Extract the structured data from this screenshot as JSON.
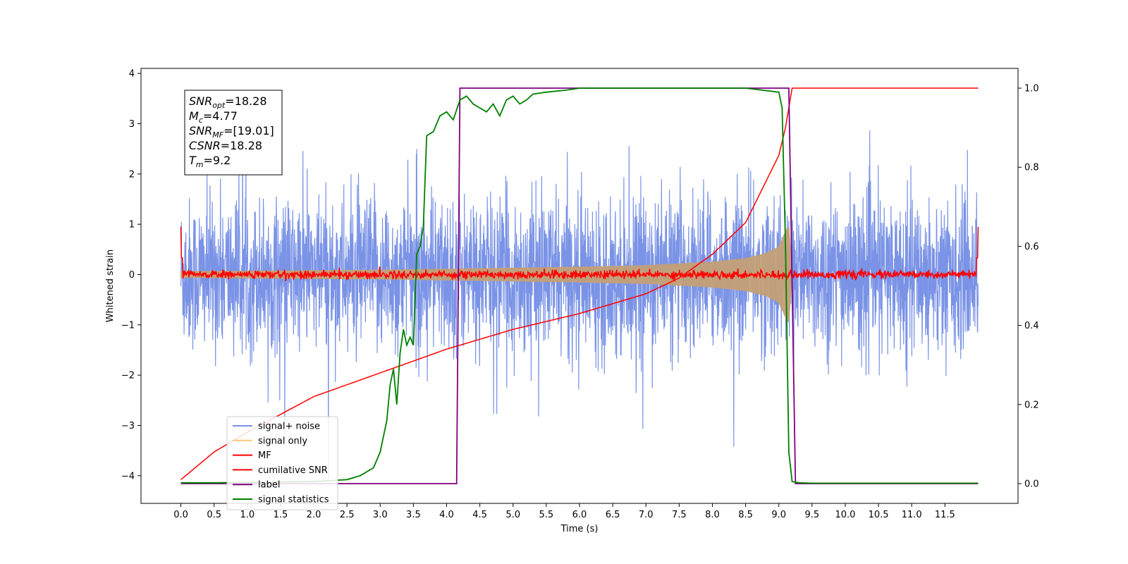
{
  "chart_data": {
    "type": "line",
    "xlabel": "Time (s)",
    "ylabel": "Whitened strain",
    "xlim": [
      -0.6,
      12.6
    ],
    "ylim": [
      -4.55,
      4.1
    ],
    "ylim_right": [
      -0.05,
      1.05
    ],
    "xticks": [
      "0.0",
      "0.5",
      "1.0",
      "1.5",
      "2.0",
      "2.5",
      "3.0",
      "3.5",
      "4.0",
      "4.5",
      "5.0",
      "5.5",
      "6.0",
      "6.5",
      "7.0",
      "7.5",
      "8.0",
      "8.5",
      "9.0",
      "9.5",
      "10.0",
      "10.5",
      "11.0",
      "11.5"
    ],
    "yticks": [
      "4",
      "3",
      "2",
      "1",
      "0",
      "−1",
      "−2",
      "−3",
      "−4"
    ],
    "yticks_right": [
      "1.0",
      "0.8",
      "0.6",
      "0.4",
      "0.2",
      "0.0"
    ],
    "annotation": [
      {
        "base": "SNR",
        "sub": "opt",
        "value": "=18.28"
      },
      {
        "base": "M",
        "sub": "c",
        "value": "=4.77"
      },
      {
        "base": "SNR",
        "sub": "MF",
        "value": "=[19.01]"
      },
      {
        "base": "CSNR",
        "sub": "",
        "value": "=18.28"
      },
      {
        "base": "T",
        "sub": "m",
        "value": "=9.2"
      }
    ],
    "legend": [
      {
        "label": "signal+ noise",
        "color": "#7a93e6"
      },
      {
        "label": "signal only",
        "color": "#ffc774"
      },
      {
        "label": "MF",
        "color": "#ff0000"
      },
      {
        "label": "cumilative SNR",
        "color": "#ff0000"
      },
      {
        "label": "label",
        "color": "#800080"
      },
      {
        "label": "signal statistics",
        "color": "#008000"
      }
    ],
    "legend_position": "lower-left",
    "series": [
      {
        "name": "signal+ noise",
        "axis": "left",
        "color": "#7a93e6",
        "x_range": [
          0.0,
          12.0
        ],
        "envelope_upper": 2.3,
        "envelope_lower": -2.3,
        "min_value": -4.15,
        "max_value": 3.7
      },
      {
        "name": "signal only",
        "axis": "left",
        "color": "#c4a077",
        "x": [
          0.0,
          1.0,
          2.0,
          3.0,
          4.0,
          5.0,
          6.0,
          7.0,
          8.0,
          8.5,
          8.8,
          9.0,
          9.1,
          9.15,
          9.2
        ],
        "amplitude": [
          0.06,
          0.07,
          0.08,
          0.09,
          0.11,
          0.13,
          0.15,
          0.18,
          0.25,
          0.32,
          0.42,
          0.55,
          0.85,
          1.0,
          0.0
        ]
      },
      {
        "name": "MF",
        "axis": "left",
        "color": "#ff0000",
        "x_range": [
          0.0,
          12.0
        ],
        "level": 0.0,
        "noise_amplitude": 0.06,
        "edge_value": 0.95
      },
      {
        "name": "cumilative SNR",
        "axis": "right",
        "color": "#ff0000",
        "x": [
          0.0,
          0.5,
          1.0,
          2.0,
          3.0,
          4.0,
          5.0,
          6.0,
          7.0,
          7.5,
          8.0,
          8.5,
          9.0,
          9.1,
          9.2,
          12.0
        ],
        "y": [
          0.01,
          0.08,
          0.13,
          0.22,
          0.28,
          0.34,
          0.39,
          0.43,
          0.48,
          0.52,
          0.58,
          0.66,
          0.83,
          0.9,
          1.0,
          1.0
        ]
      },
      {
        "name": "label",
        "axis": "right",
        "color": "#800080",
        "x": [
          0.0,
          4.15,
          4.2,
          9.15,
          9.25,
          12.0
        ],
        "y": [
          0.0,
          0.0,
          1.0,
          1.0,
          0.0,
          0.0
        ]
      },
      {
        "name": "signal statistics",
        "axis": "right",
        "color": "#008000",
        "x": [
          0.0,
          0.5,
          1.0,
          1.5,
          2.0,
          2.5,
          2.7,
          2.9,
          3.0,
          3.1,
          3.15,
          3.2,
          3.25,
          3.3,
          3.35,
          3.4,
          3.45,
          3.5,
          3.55,
          3.6,
          3.65,
          3.7,
          3.8,
          3.9,
          4.0,
          4.1,
          4.2,
          4.3,
          4.4,
          4.5,
          4.6,
          4.7,
          4.8,
          4.9,
          5.0,
          5.1,
          5.2,
          5.3,
          5.5,
          5.8,
          6.0,
          6.5,
          7.0,
          8.0,
          8.5,
          9.0,
          9.05,
          9.1,
          9.15,
          9.2,
          9.3,
          9.5,
          10.0,
          11.0,
          11.5,
          12.0
        ],
        "y": [
          0.002,
          0.002,
          0.003,
          0.004,
          0.005,
          0.01,
          0.02,
          0.04,
          0.08,
          0.16,
          0.25,
          0.29,
          0.2,
          0.33,
          0.39,
          0.35,
          0.37,
          0.35,
          0.58,
          0.6,
          0.65,
          0.88,
          0.89,
          0.93,
          0.94,
          0.92,
          0.97,
          0.98,
          0.96,
          0.95,
          0.94,
          0.96,
          0.93,
          0.97,
          0.98,
          0.96,
          0.97,
          0.985,
          0.99,
          0.995,
          1.0,
          1.0,
          1.0,
          1.0,
          1.0,
          0.99,
          0.95,
          0.6,
          0.08,
          0.005,
          0.002,
          0.001,
          0.001,
          0.001,
          0.001,
          0.001
        ]
      }
    ]
  }
}
